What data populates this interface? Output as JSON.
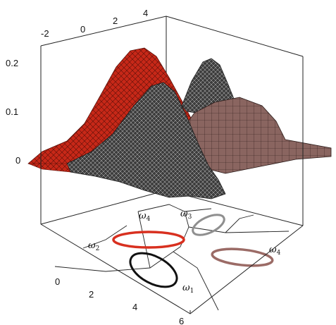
{
  "axes": {
    "top_ticks": [
      "-2",
      "0",
      "2",
      "4"
    ],
    "vertical_ticks": [
      "0.2",
      "0.1",
      "0"
    ],
    "bottom_ticks": [
      "0",
      "2",
      "4",
      "6"
    ]
  },
  "regions": {
    "omega1": {
      "base": "ω",
      "sub": "1"
    },
    "omega2": {
      "base": "ω",
      "sub": "2"
    },
    "omega3": {
      "base": "ω",
      "sub": "3"
    },
    "omega4a": {
      "base": "ω",
      "sub": "4"
    },
    "omega4b": {
      "base": "ω",
      "sub": "4"
    }
  },
  "colors": {
    "omega1": "#111111",
    "omega2": "#d8301f",
    "omega3": "#8f8f8f",
    "omega4": "#9b6b66",
    "red_surface": "#c72818",
    "dark_surface": "#444444",
    "mauve_surface": "#8a6560"
  }
}
